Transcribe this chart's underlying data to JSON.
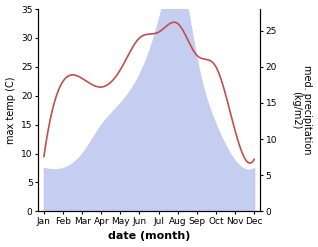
{
  "months": [
    "Jan",
    "Feb",
    "Mar",
    "Apr",
    "May",
    "Jun",
    "Jul",
    "Aug",
    "Sep",
    "Oct",
    "Nov",
    "Dec"
  ],
  "temperature": [
    9.5,
    22.5,
    23.0,
    21.5,
    24.5,
    30.0,
    31.0,
    32.5,
    27.0,
    25.0,
    14.0,
    9.0
  ],
  "precipitation": [
    6.0,
    6.0,
    8.0,
    12.0,
    15.0,
    19.0,
    26.5,
    33.0,
    21.0,
    12.0,
    7.0,
    6.0
  ],
  "temp_color": "#c0504d",
  "precip_fill_color": "#c5cef0",
  "ylabel_left": "max temp (C)",
  "ylabel_right": "med. precipitation\n(kg/m2)",
  "xlabel": "date (month)",
  "ylim_left": [
    0,
    35
  ],
  "ylim_right": [
    0,
    28
  ],
  "right_ticks": [
    0,
    5,
    10,
    15,
    20,
    25
  ],
  "left_ticks": [
    0,
    5,
    10,
    15,
    20,
    25,
    30,
    35
  ],
  "background_color": "#ffffff",
  "axis_fontsize": 7,
  "tick_fontsize": 6.5
}
